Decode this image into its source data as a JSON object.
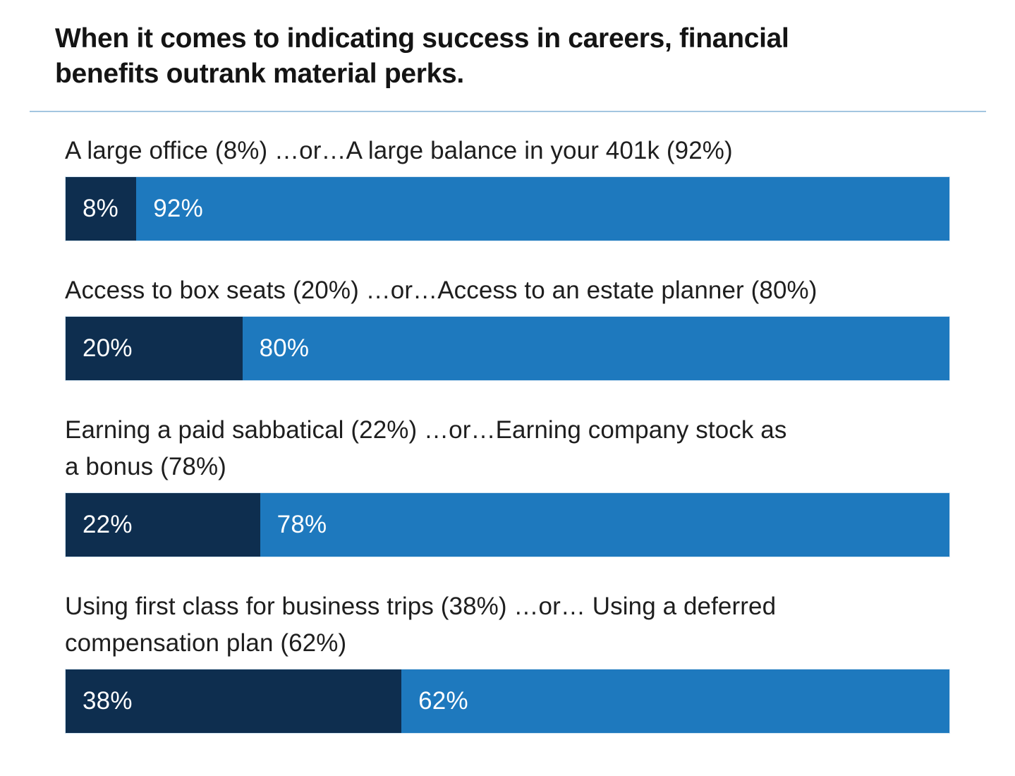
{
  "title": "When it comes to indicating success in careers, financial\nbenefits outrank material perks.",
  "colors": {
    "dark_segment": "#0e2e4f",
    "light_segment": "#1e79be",
    "divider": "#a3c6e0",
    "title_text": "#141414",
    "label_text": "#1e1e1e",
    "bar_value_text": "#ffffff"
  },
  "chart_data": {
    "type": "bar",
    "subtype": "horizontal-stacked-100pct",
    "title": "When it comes to indicating success in careers, financial benefits outrank material perks.",
    "legend_position": "none",
    "grid": false,
    "axis_labels": "none",
    "series": [
      {
        "name": "material perk",
        "color": "#0e2e4f",
        "values": [
          8,
          20,
          22,
          38
        ]
      },
      {
        "name": "financial benefit",
        "color": "#1e79be",
        "values": [
          92,
          80,
          78,
          62
        ]
      }
    ],
    "rows": [
      {
        "label": "A large office (8%) …or…A large balance in your 401k (92%)",
        "left_value": 8,
        "right_value": 92,
        "left_label": "8%",
        "right_label": "92%"
      },
      {
        "label": "Access to box seats (20%) …or…Access to an estate planner (80%)",
        "left_value": 20,
        "right_value": 80,
        "left_label": "20%",
        "right_label": "80%"
      },
      {
        "label": "Earning a paid sabbatical (22%) …or…Earning company stock as\na bonus (78%)",
        "left_value": 22,
        "right_value": 78,
        "left_label": "22%",
        "right_label": "78%"
      },
      {
        "label": "Using first class for business trips (38%) …or… Using a deferred\ncompensation plan (62%)",
        "left_value": 38,
        "right_value": 62,
        "left_label": "38%",
        "right_label": "62%"
      }
    ]
  }
}
